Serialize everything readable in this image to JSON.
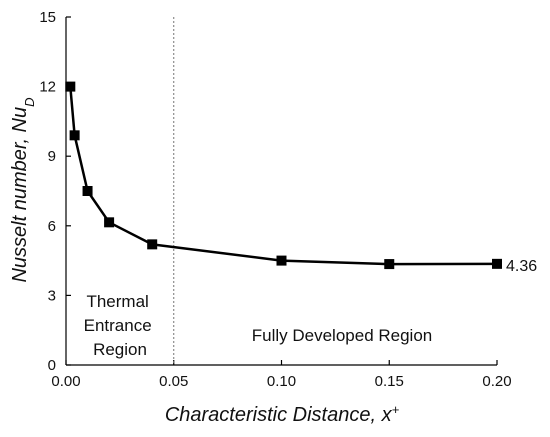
{
  "chart_data": {
    "type": "line",
    "x_axis": {
      "label_main": "Characteristic Distance, x",
      "label_sup": "+",
      "range": [
        0,
        0.2
      ],
      "ticks": [
        0,
        0.05,
        0.1,
        0.15,
        0.2
      ],
      "tick_labels": [
        "0.00",
        "0.05",
        "0.10",
        "0.15",
        "0.20"
      ]
    },
    "y_axis": {
      "label_main": "Nusselt number, Nu",
      "label_sub": "D",
      "range": [
        0,
        15
      ],
      "ticks": [
        0,
        3,
        6,
        9,
        12,
        15
      ],
      "tick_labels": [
        "0",
        "3",
        "6",
        "9",
        "12",
        "15"
      ]
    },
    "series": [
      {
        "x": [
          0.002,
          0.004,
          0.01,
          0.02,
          0.04,
          0.1,
          0.15,
          0.2
        ],
        "y": [
          12.0,
          9.9,
          7.5,
          6.15,
          5.2,
          4.5,
          4.35,
          4.36
        ],
        "marker": "square",
        "color": "#000000"
      }
    ],
    "annotations": {
      "end_value_label": "4.36",
      "divider_x": 0.05,
      "region_left": [
        "Thermal",
        "Entrance",
        "Region"
      ],
      "region_right": "Fully Developed Region"
    },
    "grid": false
  }
}
